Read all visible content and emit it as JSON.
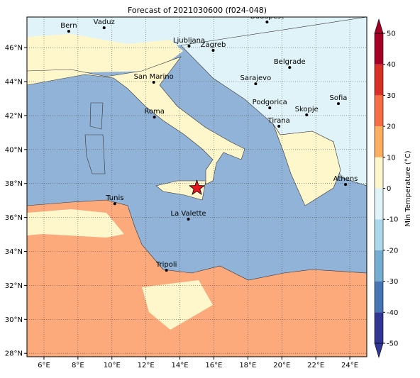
{
  "map": {
    "title": "Forecast of 2021030600 (f024-048)",
    "xlim": [
      5,
      25
    ],
    "ylim": [
      27.8,
      47.8
    ],
    "xticks": [
      {
        "value": 6,
        "label": "6°E"
      },
      {
        "value": 8,
        "label": "8°E"
      },
      {
        "value": 10,
        "label": "10°E"
      },
      {
        "value": 12,
        "label": "12°E"
      },
      {
        "value": 14,
        "label": "14°E"
      },
      {
        "value": 16,
        "label": "16°E"
      },
      {
        "value": 18,
        "label": "18°E"
      },
      {
        "value": 20,
        "label": "20°E"
      },
      {
        "value": 22,
        "label": "22°E"
      },
      {
        "value": 24,
        "label": "24°E"
      }
    ],
    "yticks": [
      {
        "value": 28,
        "label": "28°N"
      },
      {
        "value": 30,
        "label": "30°N"
      },
      {
        "value": 32,
        "label": "32°N"
      },
      {
        "value": 34,
        "label": "34°N"
      },
      {
        "value": 36,
        "label": "36°N"
      },
      {
        "value": 38,
        "label": "38°N"
      },
      {
        "value": 40,
        "label": "40°N"
      },
      {
        "value": 42,
        "label": "42°N"
      },
      {
        "value": 44,
        "label": "44°N"
      },
      {
        "value": 46,
        "label": "46°N"
      }
    ],
    "cities": [
      {
        "name": "Bern",
        "lon": 7.46,
        "lat": 46.96
      },
      {
        "name": "Vaduz",
        "lon": 9.54,
        "lat": 47.17
      },
      {
        "name": "Budapest",
        "lon": 19.13,
        "lat": 47.51
      },
      {
        "name": "Ljubljana",
        "lon": 14.54,
        "lat": 46.09
      },
      {
        "name": "Zagreb",
        "lon": 15.96,
        "lat": 45.84
      },
      {
        "name": "Belgrade",
        "lon": 20.46,
        "lat": 44.83
      },
      {
        "name": "San Marino",
        "lon": 12.46,
        "lat": 43.96
      },
      {
        "name": "Sarajevo",
        "lon": 18.46,
        "lat": 43.87
      },
      {
        "name": "Sofia",
        "lon": 23.33,
        "lat": 42.7
      },
      {
        "name": "Podgorica",
        "lon": 19.29,
        "lat": 42.45
      },
      {
        "name": "Skopje",
        "lon": 21.46,
        "lat": 42.04
      },
      {
        "name": "Roma",
        "lon": 12.5,
        "lat": 41.91
      },
      {
        "name": "Tirana",
        "lon": 19.83,
        "lat": 41.37
      },
      {
        "name": "Athens",
        "lon": 23.75,
        "lat": 37.94
      },
      {
        "name": "Tunis",
        "lon": 10.17,
        "lat": 36.81
      },
      {
        "name": "La Valette",
        "lon": 14.5,
        "lat": 35.9
      },
      {
        "name": "Tripoli",
        "lon": 13.21,
        "lat": 32.89
      }
    ],
    "star": {
      "lon": 15.0,
      "lat": 37.73,
      "color": "#e8141c"
    },
    "colorbar": {
      "label": "Min Temperature (°C)",
      "lim": [
        -50,
        50
      ],
      "ticks": [
        -50,
        -40,
        -30,
        -20,
        -10,
        0,
        10,
        20,
        30,
        40,
        50
      ],
      "colors": [
        "#313695",
        "#4575b4",
        "#74add1",
        "#abd9e9",
        "#e0f3f8",
        "#fff7cc",
        "#fdae61",
        "#f46d43",
        "#d73027",
        "#a50026"
      ]
    }
  }
}
